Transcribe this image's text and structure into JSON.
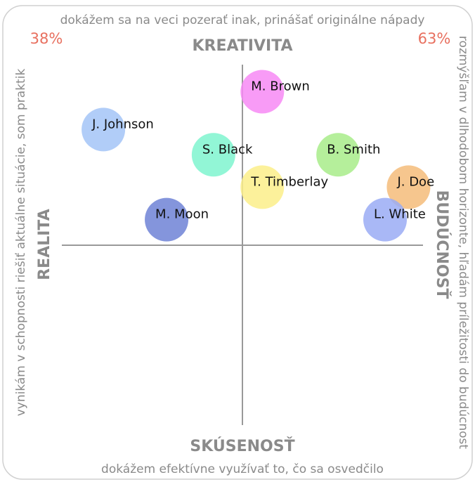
{
  "chart_data": {
    "type": "scatter",
    "top_text": "dokážem sa na veci pozerať inak, prinášať originálne nápady",
    "bottom_text": "dokážem efektívne využívať to, čo sa osvedčilo",
    "left_text": "vynikám v schopnosti riešiť aktuálne situácie, som praktik",
    "right_text": "rozmýšľam v dlhodobom horizonte, hľadám príležitosti do budúcnost",
    "top_axis": "KREATIVITA",
    "bottom_axis": "SKÚSENOSŤ",
    "left_axis": "REALITA",
    "right_axis": "BUDÚCNOSŤ",
    "left_percent": "38%",
    "right_percent": "63%",
    "xlim": [
      -100,
      100
    ],
    "ylim": [
      -100,
      100
    ],
    "series": [
      {
        "name": "M. Brown",
        "color": "#f78af5",
        "x": [
          11
        ],
        "values": [
          85
        ]
      },
      {
        "name": "J. Johnson",
        "color": "#a3c4f7",
        "x": [
          -77
        ],
        "values": [
          64
        ]
      },
      {
        "name": "S. Black",
        "color": "#7ff5cf",
        "x": [
          -16
        ],
        "values": [
          50
        ]
      },
      {
        "name": "B. Smith",
        "color": "#a8ec8a",
        "x": [
          53
        ],
        "values": [
          50
        ]
      },
      {
        "name": "T. Timberlay",
        "color": "#fbef8a",
        "x": [
          11
        ],
        "values": [
          32
        ]
      },
      {
        "name": "J. Doe",
        "color": "#f5bc7a",
        "x": [
          92
        ],
        "values": [
          32
        ]
      },
      {
        "name": "M. Moon",
        "color": "#6f83d6",
        "x": [
          -42
        ],
        "values": [
          14
        ]
      },
      {
        "name": "L. White",
        "color": "#9aacf5",
        "x": [
          79
        ],
        "values": [
          14
        ]
      }
    ]
  }
}
